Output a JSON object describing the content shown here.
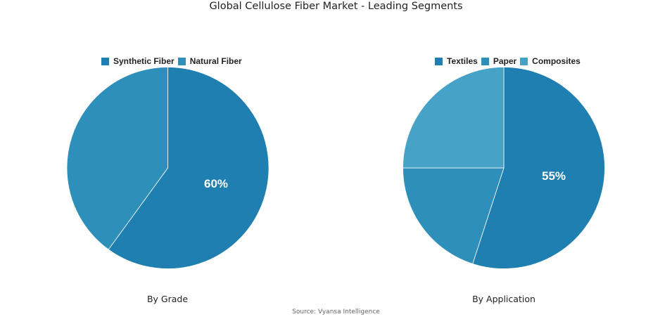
{
  "title": "Global Cellulose Fiber Market - Leading Segments",
  "source": "Source: Vyansa Intelligence",
  "charts": [
    {
      "subtitle": "By Grade",
      "legend": [
        {
          "label": "Synthetic Fiber",
          "color": "#1f7fb0"
        },
        {
          "label": "Natural Fiber",
          "color": "#2e8fbb"
        }
      ],
      "highlight_label": "60%"
    },
    {
      "subtitle": "By Application",
      "legend": [
        {
          "label": "Textiles",
          "color": "#1f7fb0"
        },
        {
          "label": "Paper",
          "color": "#2e8fbb"
        },
        {
          "label": "Composites",
          "color": "#47a2c8"
        }
      ],
      "highlight_label": "55%"
    }
  ],
  "chart_data": [
    {
      "type": "pie",
      "title": "By Grade",
      "categories": [
        "Synthetic Fiber",
        "Natural Fiber"
      ],
      "values": [
        60,
        40
      ],
      "colors": [
        "#1f7fb0",
        "#2e8fbb"
      ],
      "legend_position": "top",
      "data_labels": [
        "60%"
      ]
    },
    {
      "type": "pie",
      "title": "By Application",
      "categories": [
        "Textiles",
        "Paper",
        "Composites"
      ],
      "values": [
        55,
        20,
        25
      ],
      "colors": [
        "#1f7fb0",
        "#2e8fbb",
        "#47a2c8"
      ],
      "legend_position": "top",
      "data_labels": [
        "55%"
      ]
    }
  ]
}
